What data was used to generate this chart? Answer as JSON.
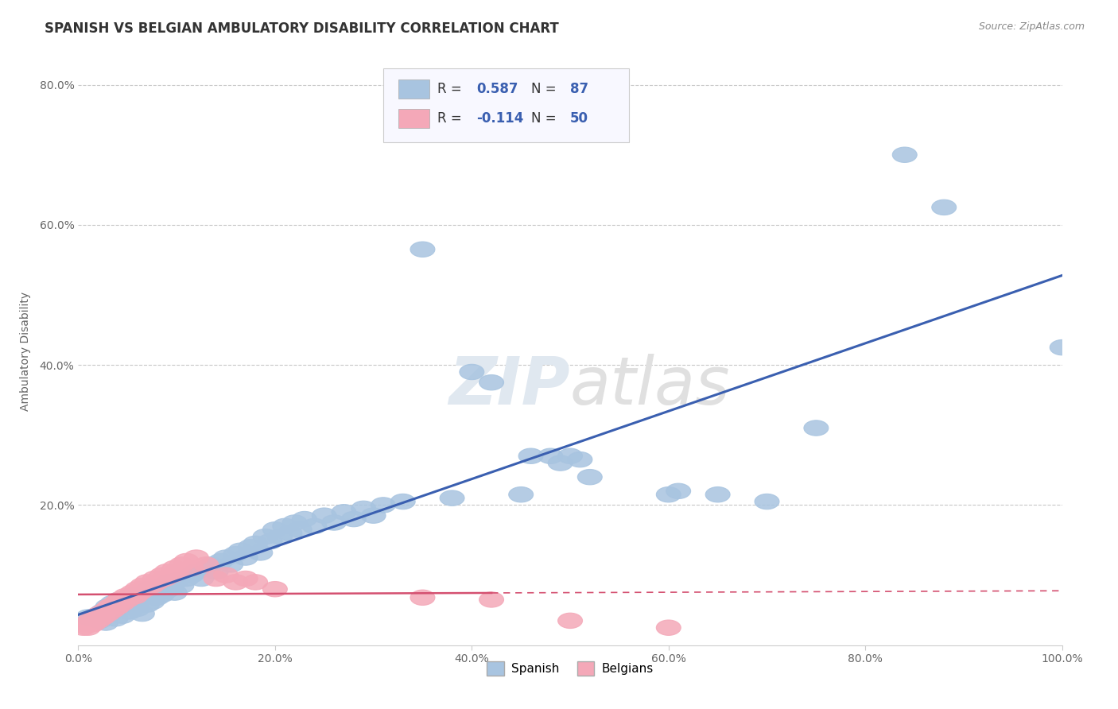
{
  "title": "SPANISH VS BELGIAN AMBULATORY DISABILITY CORRELATION CHART",
  "source": "Source: ZipAtlas.com",
  "ylabel": "Ambulatory Disability",
  "xlim": [
    0.0,
    1.0
  ],
  "ylim": [
    0.0,
    0.84
  ],
  "xtick_positions": [
    0.0,
    0.2,
    0.4,
    0.6,
    0.8,
    1.0
  ],
  "xtick_labels": [
    "0.0%",
    "20.0%",
    "40.0%",
    "60.0%",
    "80.0%",
    "100.0%"
  ],
  "ytick_positions": [
    0.2,
    0.4,
    0.6,
    0.8
  ],
  "ytick_labels": [
    "20.0%",
    "40.0%",
    "60.0%",
    "80.0%"
  ],
  "legend_labels": [
    "Spanish",
    "Belgians"
  ],
  "r_spanish": 0.587,
  "n_spanish": 87,
  "r_belgian": -0.114,
  "n_belgian": 50,
  "spanish_color": "#a8c4e0",
  "belgian_color": "#f4a8b8",
  "trendline_spanish_color": "#3a5fb0",
  "trendline_belgian_color": "#d45070",
  "background_color": "#ffffff",
  "grid_color": "#c8c8c8",
  "spanish_scatter": [
    [
      0.01,
      0.04
    ],
    [
      0.015,
      0.038
    ],
    [
      0.018,
      0.042
    ],
    [
      0.022,
      0.035
    ],
    [
      0.025,
      0.048
    ],
    [
      0.028,
      0.032
    ],
    [
      0.03,
      0.055
    ],
    [
      0.033,
      0.045
    ],
    [
      0.035,
      0.06
    ],
    [
      0.038,
      0.038
    ],
    [
      0.04,
      0.05
    ],
    [
      0.042,
      0.065
    ],
    [
      0.045,
      0.042
    ],
    [
      0.048,
      0.055
    ],
    [
      0.05,
      0.068
    ],
    [
      0.052,
      0.048
    ],
    [
      0.055,
      0.058
    ],
    [
      0.058,
      0.072
    ],
    [
      0.06,
      0.052
    ],
    [
      0.062,
      0.065
    ],
    [
      0.065,
      0.045
    ],
    [
      0.068,
      0.07
    ],
    [
      0.07,
      0.058
    ],
    [
      0.072,
      0.08
    ],
    [
      0.075,
      0.062
    ],
    [
      0.078,
      0.075
    ],
    [
      0.08,
      0.068
    ],
    [
      0.082,
      0.082
    ],
    [
      0.085,
      0.072
    ],
    [
      0.088,
      0.085
    ],
    [
      0.09,
      0.078
    ],
    [
      0.092,
      0.09
    ],
    [
      0.095,
      0.082
    ],
    [
      0.098,
      0.075
    ],
    [
      0.1,
      0.092
    ],
    [
      0.105,
      0.085
    ],
    [
      0.11,
      0.095
    ],
    [
      0.115,
      0.1
    ],
    [
      0.12,
      0.105
    ],
    [
      0.125,
      0.095
    ],
    [
      0.13,
      0.11
    ],
    [
      0.135,
      0.115
    ],
    [
      0.14,
      0.105
    ],
    [
      0.145,
      0.12
    ],
    [
      0.15,
      0.125
    ],
    [
      0.155,
      0.115
    ],
    [
      0.16,
      0.13
    ],
    [
      0.165,
      0.135
    ],
    [
      0.17,
      0.125
    ],
    [
      0.175,
      0.14
    ],
    [
      0.18,
      0.145
    ],
    [
      0.185,
      0.132
    ],
    [
      0.19,
      0.155
    ],
    [
      0.195,
      0.148
    ],
    [
      0.2,
      0.165
    ],
    [
      0.205,
      0.155
    ],
    [
      0.21,
      0.17
    ],
    [
      0.215,
      0.16
    ],
    [
      0.22,
      0.175
    ],
    [
      0.225,
      0.165
    ],
    [
      0.23,
      0.18
    ],
    [
      0.24,
      0.17
    ],
    [
      0.25,
      0.185
    ],
    [
      0.26,
      0.175
    ],
    [
      0.27,
      0.19
    ],
    [
      0.28,
      0.18
    ],
    [
      0.29,
      0.195
    ],
    [
      0.3,
      0.185
    ],
    [
      0.31,
      0.2
    ],
    [
      0.33,
      0.205
    ],
    [
      0.35,
      0.565
    ],
    [
      0.38,
      0.21
    ],
    [
      0.4,
      0.39
    ],
    [
      0.42,
      0.375
    ],
    [
      0.45,
      0.215
    ],
    [
      0.46,
      0.27
    ],
    [
      0.48,
      0.27
    ],
    [
      0.49,
      0.26
    ],
    [
      0.5,
      0.27
    ],
    [
      0.51,
      0.265
    ],
    [
      0.52,
      0.24
    ],
    [
      0.6,
      0.215
    ],
    [
      0.61,
      0.22
    ],
    [
      0.65,
      0.215
    ],
    [
      0.7,
      0.205
    ],
    [
      0.75,
      0.31
    ],
    [
      0.84,
      0.7
    ],
    [
      0.88,
      0.625
    ],
    [
      1.0,
      0.425
    ]
  ],
  "belgian_scatter": [
    [
      0.005,
      0.025
    ],
    [
      0.008,
      0.03
    ],
    [
      0.01,
      0.025
    ],
    [
      0.012,
      0.035
    ],
    [
      0.015,
      0.03
    ],
    [
      0.018,
      0.04
    ],
    [
      0.02,
      0.035
    ],
    [
      0.022,
      0.045
    ],
    [
      0.025,
      0.04
    ],
    [
      0.028,
      0.05
    ],
    [
      0.03,
      0.045
    ],
    [
      0.032,
      0.055
    ],
    [
      0.035,
      0.05
    ],
    [
      0.038,
      0.06
    ],
    [
      0.04,
      0.055
    ],
    [
      0.042,
      0.065
    ],
    [
      0.045,
      0.06
    ],
    [
      0.048,
      0.07
    ],
    [
      0.05,
      0.065
    ],
    [
      0.055,
      0.075
    ],
    [
      0.058,
      0.07
    ],
    [
      0.06,
      0.08
    ],
    [
      0.062,
      0.075
    ],
    [
      0.065,
      0.085
    ],
    [
      0.068,
      0.08
    ],
    [
      0.07,
      0.09
    ],
    [
      0.075,
      0.085
    ],
    [
      0.078,
      0.095
    ],
    [
      0.08,
      0.09
    ],
    [
      0.085,
      0.1
    ],
    [
      0.088,
      0.095
    ],
    [
      0.09,
      0.105
    ],
    [
      0.095,
      0.1
    ],
    [
      0.098,
      0.11
    ],
    [
      0.1,
      0.105
    ],
    [
      0.105,
      0.115
    ],
    [
      0.11,
      0.12
    ],
    [
      0.115,
      0.11
    ],
    [
      0.12,
      0.125
    ],
    [
      0.13,
      0.115
    ],
    [
      0.14,
      0.095
    ],
    [
      0.15,
      0.1
    ],
    [
      0.16,
      0.09
    ],
    [
      0.17,
      0.095
    ],
    [
      0.18,
      0.09
    ],
    [
      0.2,
      0.08
    ],
    [
      0.35,
      0.068
    ],
    [
      0.42,
      0.065
    ],
    [
      0.5,
      0.035
    ],
    [
      0.6,
      0.025
    ]
  ],
  "title_fontsize": 12,
  "axis_label_fontsize": 10,
  "tick_fontsize": 10
}
